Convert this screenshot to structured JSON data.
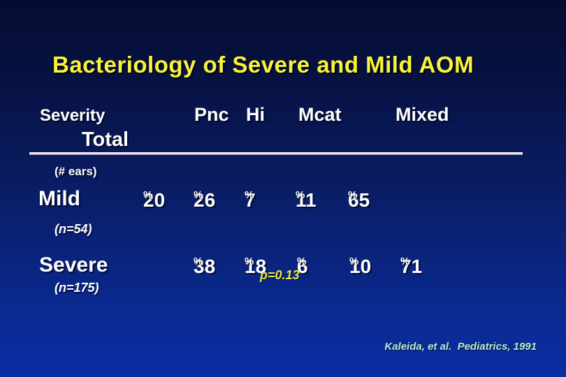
{
  "slide": {
    "title": "Bacteriology of Severe and Mild AOM",
    "citation": "Kaleida, et al.  Pediatrics, 1991",
    "colors": {
      "background_top": "#050c33",
      "background_bottom": "#0b2da3",
      "title_text": "#f8f437",
      "body_text": "#ffffff",
      "annotation_text": "#e9e93e",
      "citation_text": "#b9edcd",
      "divider": "#efe9f4"
    }
  },
  "table": {
    "row_axis_label": "Severity",
    "row_axis_sublabel": "(# ears)",
    "percent_sign": "%",
    "columns": [
      "Total",
      "Pnc",
      "Hi",
      "Mcat",
      "Mixed"
    ],
    "annotation": "p=0.13",
    "rows": [
      {
        "label": "Mild",
        "n_label": "(n=54)",
        "values": [
          "20",
          "26",
          "7",
          "11",
          "65"
        ]
      },
      {
        "label": "Severe",
        "n_label": "(n=175)",
        "values": [
          "38",
          "18",
          "6",
          "10",
          "71"
        ]
      }
    ]
  },
  "chart_data": {
    "type": "table",
    "title": "Bacteriology of Severe and Mild AOM",
    "columns": [
      "Total",
      "Pnc",
      "Hi",
      "Mcat",
      "Mixed"
    ],
    "unit": "percent",
    "rows": [
      {
        "severity": "Mild",
        "n_ears": 54,
        "values_pct": [
          20,
          26,
          7,
          11,
          65
        ]
      },
      {
        "severity": "Severe",
        "n_ears": 175,
        "values_pct": [
          38,
          18,
          6,
          10,
          71
        ]
      }
    ],
    "annotation": "p=0.13",
    "source": "Kaleida, et al. Pediatrics, 1991"
  }
}
